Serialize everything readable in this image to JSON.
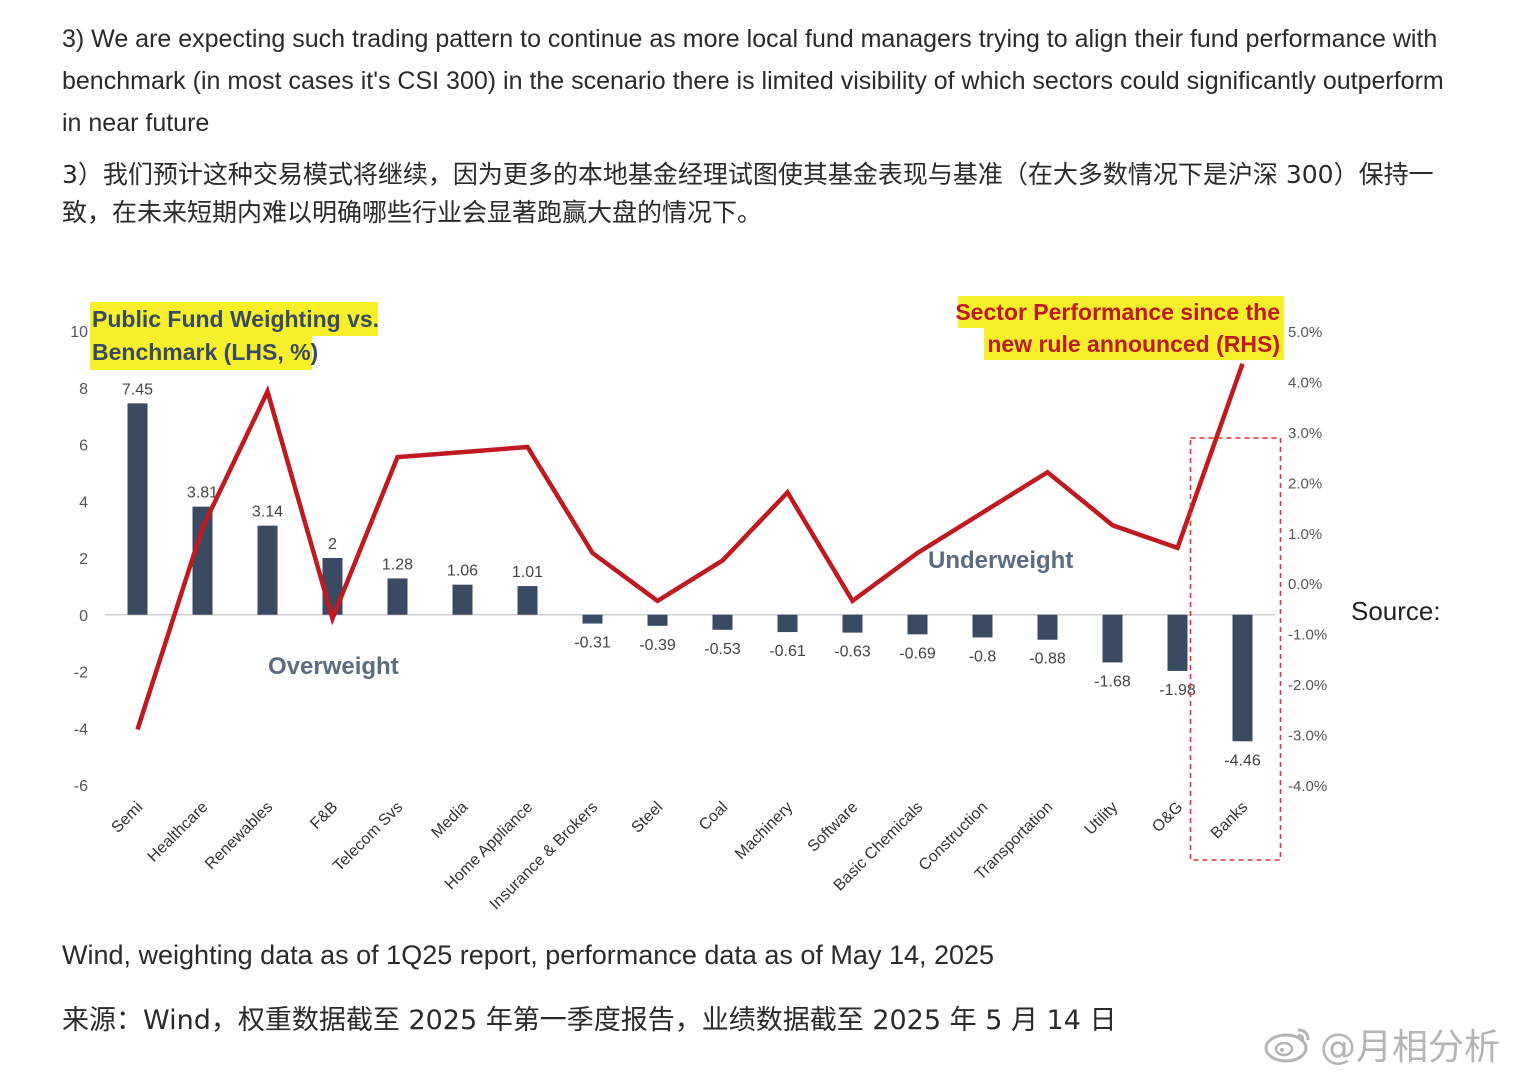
{
  "intro_en": "3) We are expecting such trading pattern to continue as more local fund managers trying to align their fund performance with benchmark (in most cases it's CSI 300) in the scenario there is limited visibility of which sectors could significantly outperform in near future",
  "intro_zh": "3）我们预计这种交易模式将继续，因为更多的本地基金经理试图使其基金表现与基准（在大多数情况下是沪深 300）保持一致，在未来短期内难以明确哪些行业会显著跑赢大盘的情况下。",
  "source_label": "Source:",
  "source_en": "Wind, weighting data as of 1Q25 report, performance data as of May 14, 2025",
  "source_zh": "来源：Wind，权重数据截至 2025 年第一季度报告，业绩数据截至 2025 年 5 月 14 日",
  "watermark": "@月相分析",
  "colors": {
    "bar": "#3b4a63",
    "line": "#c0191f",
    "highlight": "#f5f02a",
    "rhs_title": "#c0191f",
    "annotation": "#5b6b82",
    "dashed_box": "#e03030"
  },
  "chart_data": {
    "type": "bar+line",
    "lhs_title_line1": "Public Fund Weighting vs.",
    "lhs_title_line2": "Benchmark (LHS, %)",
    "rhs_title_line1": "Sector Performance since the",
    "rhs_title_line2": "new rule announced (RHS)",
    "categories": [
      "Semi",
      "Healthcare",
      "Renewables",
      "F&B",
      "Telecom Svs",
      "Media",
      "Home Appliance",
      "Insurance & Brokers",
      "Steel",
      "Coal",
      "Machinery",
      "Software",
      "Basic Chemicals",
      "Construction",
      "Transportation",
      "Utility",
      "O&G",
      "Banks"
    ],
    "bar_values": [
      7.45,
      3.81,
      3.14,
      2,
      1.28,
      1.06,
      1.01,
      -0.31,
      -0.39,
      -0.53,
      -0.61,
      -0.63,
      -0.69,
      -0.8,
      -0.88,
      -1.68,
      -1.98,
      -4.46
    ],
    "bar_labels": [
      "7.45",
      "3.81",
      "3.14",
      "2",
      "1.28",
      "1.06",
      "1.01",
      "-0.31",
      "-0.39",
      "-0.53",
      "-0.61",
      "-0.63",
      "-0.69",
      "-0.8",
      "-0.88",
      "-1.68",
      "-1.98",
      "-4.46"
    ],
    "line_values": [
      -2.9,
      1.1,
      3.8,
      -0.7,
      2.5,
      2.6,
      2.7,
      0.6,
      -0.35,
      0.45,
      1.8,
      -0.35,
      0.6,
      1.4,
      2.2,
      1.15,
      0.7,
      4.35
    ],
    "ylim_left": [
      -6,
      10
    ],
    "yticks_left": [
      "10",
      "8",
      "6",
      "4",
      "2",
      "0",
      "-2",
      "-4",
      "-6"
    ],
    "ytick_values_left": [
      10,
      8,
      6,
      4,
      2,
      0,
      -2,
      -4,
      -6
    ],
    "ylim_right": [
      -4.0,
      5.0
    ],
    "yticks_right": [
      "5.0%",
      "4.0%",
      "3.0%",
      "2.0%",
      "1.0%",
      "0.0%",
      "-1.0%",
      "-2.0%",
      "-3.0%",
      "-4.0%"
    ],
    "ytick_values_right": [
      5,
      4,
      3,
      2,
      1,
      0,
      -1,
      -2,
      -3,
      -4
    ],
    "annotations": {
      "overweight": "Overweight",
      "underweight": "Underweight"
    },
    "highlighted_category": "Banks"
  }
}
